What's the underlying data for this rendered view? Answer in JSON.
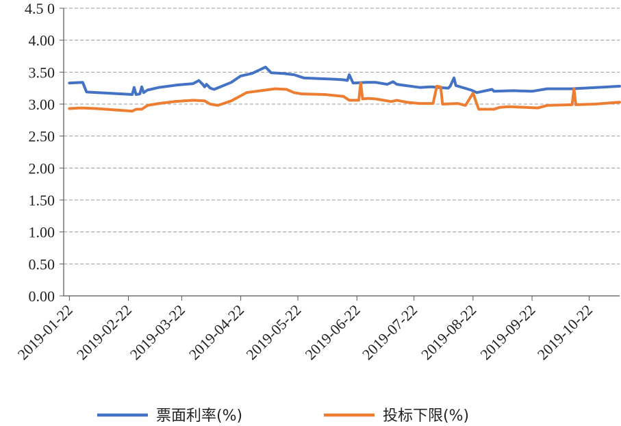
{
  "chart_data": {
    "type": "line",
    "title": "",
    "xlabel": "",
    "ylabel": "",
    "ylim": [
      0,
      4.5
    ],
    "y_ticks": [
      "0.00",
      "0.50",
      "1.00",
      "1.50",
      "2.00",
      "2.50",
      "3.00",
      "3.50",
      "4.00",
      "4.5 0"
    ],
    "x_ticks": [
      "2019-01-22",
      "2019-02-22",
      "2019-03-22",
      "2019-04-22",
      "2019-05-22",
      "2019-06-22",
      "2019-07-22",
      "2019-08-22",
      "2019-09-22",
      "2019-10-22"
    ],
    "xlim": [
      "2019-01-19",
      "2019-11-07"
    ],
    "grid": "horizontal dashed",
    "legend_position": "bottom",
    "series": [
      {
        "name": "票面利率(%)",
        "color": "#4472C4",
        "points": [
          [
            "2019-01-22",
            3.33
          ],
          [
            "2019-01-29",
            3.34
          ],
          [
            "2019-01-31",
            3.19
          ],
          [
            "2019-02-12",
            3.17
          ],
          [
            "2019-02-24",
            3.15
          ],
          [
            "2019-02-25",
            3.26
          ],
          [
            "2019-02-26",
            3.15
          ],
          [
            "2019-02-28",
            3.16
          ],
          [
            "2019-03-01",
            3.27
          ],
          [
            "2019-03-02",
            3.18
          ],
          [
            "2019-03-04",
            3.22
          ],
          [
            "2019-03-10",
            3.26
          ],
          [
            "2019-03-20",
            3.3
          ],
          [
            "2019-03-28",
            3.32
          ],
          [
            "2019-03-31",
            3.37
          ],
          [
            "2019-04-02",
            3.31
          ],
          [
            "2019-04-03",
            3.27
          ],
          [
            "2019-04-04",
            3.31
          ],
          [
            "2019-04-06",
            3.25
          ],
          [
            "2019-04-08",
            3.23
          ],
          [
            "2019-04-17",
            3.34
          ],
          [
            "2019-04-22",
            3.44
          ],
          [
            "2019-04-28",
            3.48
          ],
          [
            "2019-05-05",
            3.58
          ],
          [
            "2019-05-08",
            3.49
          ],
          [
            "2019-05-14",
            3.48
          ],
          [
            "2019-05-20",
            3.46
          ],
          [
            "2019-05-25",
            3.41
          ],
          [
            "2019-06-02",
            3.4
          ],
          [
            "2019-06-10",
            3.39
          ],
          [
            "2019-06-15",
            3.38
          ],
          [
            "2019-06-17",
            3.37
          ],
          [
            "2019-06-18",
            3.46
          ],
          [
            "2019-06-20",
            3.33
          ],
          [
            "2019-06-27",
            3.34
          ],
          [
            "2019-07-02",
            3.34
          ],
          [
            "2019-07-08",
            3.31
          ],
          [
            "2019-07-11",
            3.35
          ],
          [
            "2019-07-13",
            3.31
          ],
          [
            "2019-07-25",
            3.26
          ],
          [
            "2019-07-31",
            3.27
          ],
          [
            "2019-08-09",
            3.25
          ],
          [
            "2019-08-10",
            3.28
          ],
          [
            "2019-08-12",
            3.41
          ],
          [
            "2019-08-13",
            3.29
          ],
          [
            "2019-08-21",
            3.22
          ],
          [
            "2019-08-24",
            3.18
          ],
          [
            "2019-09-01",
            3.23
          ],
          [
            "2019-09-02",
            3.2
          ],
          [
            "2019-09-12",
            3.21
          ],
          [
            "2019-09-22",
            3.2
          ],
          [
            "2019-09-30",
            3.24
          ],
          [
            "2019-10-13",
            3.24
          ],
          [
            "2019-11-07",
            3.28
          ]
        ]
      },
      {
        "name": "投标下限(%)",
        "color": "#ED7D31",
        "points": [
          [
            "2019-01-22",
            2.93
          ],
          [
            "2019-01-28",
            2.94
          ],
          [
            "2019-02-05",
            2.93
          ],
          [
            "2019-02-24",
            2.89
          ],
          [
            "2019-02-26",
            2.92
          ],
          [
            "2019-03-01",
            2.92
          ],
          [
            "2019-03-04",
            2.98
          ],
          [
            "2019-03-10",
            3.01
          ],
          [
            "2019-03-18",
            3.04
          ],
          [
            "2019-03-28",
            3.06
          ],
          [
            "2019-04-03",
            3.05
          ],
          [
            "2019-04-06",
            3.0
          ],
          [
            "2019-04-10",
            2.98
          ],
          [
            "2019-04-17",
            3.05
          ],
          [
            "2019-04-22",
            3.13
          ],
          [
            "2019-04-25",
            3.18
          ],
          [
            "2019-05-05",
            3.22
          ],
          [
            "2019-05-10",
            3.24
          ],
          [
            "2019-05-16",
            3.23
          ],
          [
            "2019-05-20",
            3.18
          ],
          [
            "2019-05-24",
            3.16
          ],
          [
            "2019-06-05",
            3.15
          ],
          [
            "2019-06-15",
            3.12
          ],
          [
            "2019-06-18",
            3.06
          ],
          [
            "2019-06-23",
            3.06
          ],
          [
            "2019-06-24",
            3.33
          ],
          [
            "2019-06-25",
            3.08
          ],
          [
            "2019-06-28",
            3.09
          ],
          [
            "2019-07-02",
            3.08
          ],
          [
            "2019-07-06",
            3.06
          ],
          [
            "2019-07-10",
            3.04
          ],
          [
            "2019-07-13",
            3.06
          ],
          [
            "2019-07-18",
            3.03
          ],
          [
            "2019-07-25",
            3.01
          ],
          [
            "2019-08-01",
            3.01
          ],
          [
            "2019-08-03",
            3.28
          ],
          [
            "2019-08-05",
            3.27
          ],
          [
            "2019-08-06",
            3.0
          ],
          [
            "2019-08-14",
            3.01
          ],
          [
            "2019-08-18",
            2.98
          ],
          [
            "2019-08-22",
            3.17
          ],
          [
            "2019-08-25",
            2.92
          ],
          [
            "2019-09-02",
            2.92
          ],
          [
            "2019-09-05",
            2.95
          ],
          [
            "2019-09-10",
            2.96
          ],
          [
            "2019-09-25",
            2.94
          ],
          [
            "2019-09-30",
            2.98
          ],
          [
            "2019-10-13",
            2.99
          ],
          [
            "2019-10-14",
            3.24
          ],
          [
            "2019-10-15",
            2.99
          ],
          [
            "2019-10-25",
            3.0
          ],
          [
            "2019-11-07",
            3.03
          ]
        ]
      }
    ]
  }
}
